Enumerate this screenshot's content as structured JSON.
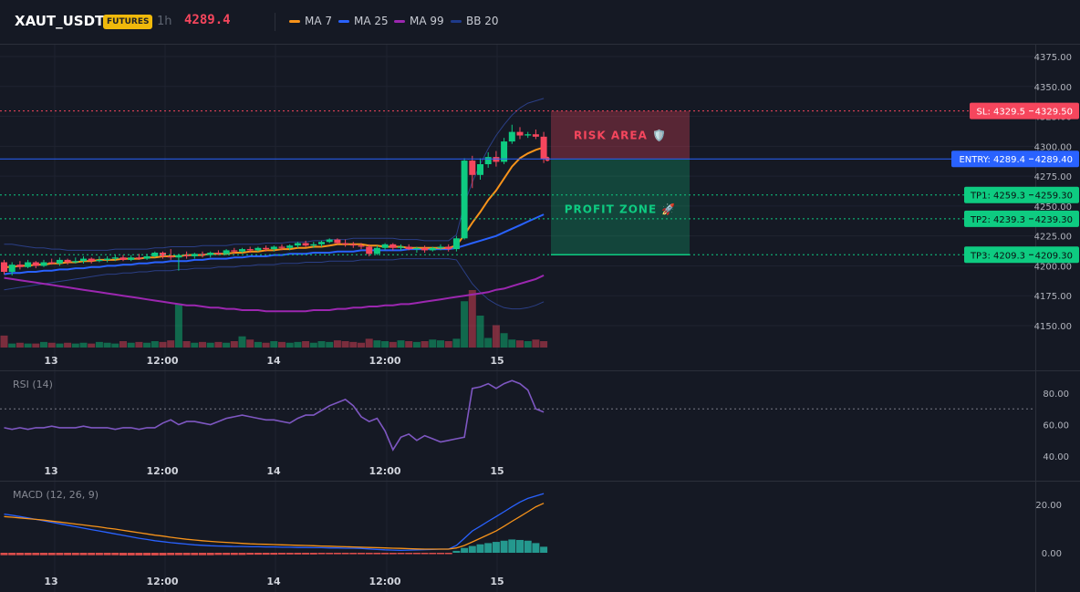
{
  "header": {
    "symbol": "XAUT_USDT",
    "badge": "FUTURES",
    "timeframe": "1h",
    "price": "4289.4",
    "legend": [
      {
        "label": "MA 7",
        "color": "#f7931a"
      },
      {
        "label": "MA 25",
        "color": "#2962ff"
      },
      {
        "label": "MA 99",
        "color": "#9c27b0"
      },
      {
        "label": "BB 20",
        "color": "#1e3a8a"
      }
    ]
  },
  "levels": {
    "sl": {
      "tag": "SL: 4329.5",
      "axis": "4329.50",
      "value": 4329.5,
      "color": "#f6465d"
    },
    "entry": {
      "tag": "ENTRY: 4289.4",
      "axis": "4289.40",
      "value": 4289.4,
      "color": "#2962ff"
    },
    "tp": [
      {
        "tag": "TP1: 4259.3",
        "axis": "4259.30",
        "value": 4259.3
      },
      {
        "tag": "TP2: 4239.3",
        "axis": "4239.30",
        "value": 4239.3
      },
      {
        "tag": "TP3: 4209.3",
        "axis": "4209.30",
        "value": 4209.3
      }
    ]
  },
  "zones": {
    "risk_label": "RISK AREA 🛡️",
    "profit_label": "PROFIT ZONE 🚀"
  },
  "time_ticks": [
    "13",
    "12:00",
    "14",
    "12:00",
    "15"
  ],
  "chart_data": [
    {
      "type": "candlestick",
      "ylim": [
        4130,
        4385
      ],
      "y_ticks": [
        4375,
        4350,
        4325,
        4300,
        4275,
        4250,
        4225,
        4200,
        4175,
        4150
      ],
      "y_tick_labels": [
        "4375.00",
        "4350.00",
        "4325.00",
        "4300.00",
        "4275.00",
        "4250.00",
        "4225.00",
        "4200.00",
        "4175.00",
        "4150.00"
      ],
      "candles": [
        [
          4203,
          4205,
          4193,
          4195
        ],
        [
          4195,
          4203,
          4192,
          4201
        ],
        [
          4201,
          4204,
          4197,
          4199
        ],
        [
          4199,
          4205,
          4198,
          4203
        ],
        [
          4203,
          4204,
          4198,
          4200
        ],
        [
          4200,
          4205,
          4199,
          4203
        ],
        [
          4203,
          4206,
          4201,
          4202
        ],
        [
          4202,
          4207,
          4200,
          4205
        ],
        [
          4205,
          4206,
          4201,
          4203
        ],
        [
          4203,
          4207,
          4202,
          4204
        ],
        [
          4204,
          4208,
          4202,
          4206
        ],
        [
          4206,
          4207,
          4202,
          4204
        ],
        [
          4204,
          4208,
          4203,
          4205
        ],
        [
          4205,
          4208,
          4203,
          4206
        ],
        [
          4206,
          4209,
          4204,
          4207
        ],
        [
          4207,
          4209,
          4204,
          4205
        ],
        [
          4205,
          4209,
          4204,
          4207
        ],
        [
          4207,
          4210,
          4205,
          4206
        ],
        [
          4206,
          4210,
          4205,
          4208
        ],
        [
          4208,
          4212,
          4207,
          4211
        ],
        [
          4211,
          4212,
          4206,
          4208
        ],
        [
          4208,
          4214,
          4205,
          4207
        ],
        [
          4207,
          4210,
          4196,
          4209
        ],
        [
          4209,
          4212,
          4206,
          4208
        ],
        [
          4208,
          4211,
          4206,
          4210
        ],
        [
          4210,
          4212,
          4207,
          4209
        ],
        [
          4209,
          4212,
          4207,
          4211
        ],
        [
          4211,
          4213,
          4209,
          4210
        ],
        [
          4210,
          4214,
          4209,
          4213
        ],
        [
          4213,
          4215,
          4210,
          4212
        ],
        [
          4212,
          4215,
          4211,
          4214
        ],
        [
          4214,
          4216,
          4211,
          4213
        ],
        [
          4213,
          4216,
          4212,
          4215
        ],
        [
          4215,
          4217,
          4212,
          4214
        ],
        [
          4214,
          4217,
          4212,
          4216
        ],
        [
          4216,
          4218,
          4213,
          4215
        ],
        [
          4215,
          4218,
          4213,
          4217
        ],
        [
          4217,
          4220,
          4215,
          4219
        ],
        [
          4219,
          4221,
          4216,
          4217
        ],
        [
          4217,
          4220,
          4215,
          4218
        ],
        [
          4218,
          4221,
          4216,
          4220
        ],
        [
          4220,
          4223,
          4219,
          4222
        ],
        [
          4222,
          4223,
          4218,
          4219
        ],
        [
          4219,
          4222,
          4216,
          4218
        ],
        [
          4218,
          4220,
          4215,
          4217
        ],
        [
          4217,
          4219,
          4214,
          4216
        ],
        [
          4216,
          4218,
          4208,
          4210
        ],
        [
          4210,
          4217,
          4209,
          4215
        ],
        [
          4215,
          4219,
          4213,
          4218
        ],
        [
          4218,
          4219,
          4213,
          4215
        ],
        [
          4215,
          4218,
          4213,
          4216
        ],
        [
          4216,
          4218,
          4213,
          4214
        ],
        [
          4214,
          4216,
          4211,
          4215
        ],
        [
          4215,
          4217,
          4211,
          4213
        ],
        [
          4213,
          4216,
          4212,
          4215
        ],
        [
          4215,
          4218,
          4213,
          4216
        ],
        [
          4216,
          4218,
          4212,
          4214
        ],
        [
          4214,
          4225,
          4212,
          4223
        ],
        [
          4223,
          4290,
          4222,
          4288
        ],
        [
          4288,
          4292,
          4265,
          4276
        ],
        [
          4276,
          4290,
          4272,
          4285
        ],
        [
          4285,
          4295,
          4282,
          4291
        ],
        [
          4291,
          4296,
          4283,
          4287
        ],
        [
          4287,
          4307,
          4285,
          4304
        ],
        [
          4304,
          4318,
          4302,
          4312
        ],
        [
          4312,
          4316,
          4306,
          4309
        ],
        [
          4309,
          4312,
          4307,
          4310
        ],
        [
          4310,
          4314,
          4306,
          4308
        ],
        [
          4308,
          4312,
          4286,
          4289.4
        ]
      ],
      "ma7": [
        4199,
        4199,
        4200,
        4200,
        4201,
        4201,
        4202,
        4202,
        4203,
        4203,
        4204,
        4204,
        4205,
        4205,
        4205,
        4206,
        4206,
        4206,
        4207,
        4207,
        4208,
        4208,
        4208,
        4209,
        4209,
        4209,
        4210,
        4210,
        4210,
        4211,
        4211,
        4212,
        4212,
        4213,
        4213,
        4214,
        4214,
        4215,
        4215,
        4216,
        4216,
        4217,
        4218,
        4218,
        4218,
        4218,
        4217,
        4217,
        4216,
        4216,
        4216,
        4215,
        4215,
        4215,
        4215,
        4215,
        4215,
        4217,
        4226,
        4236,
        4245,
        4255,
        4263,
        4273,
        4283,
        4290,
        4294,
        4297,
        4299
      ],
      "ma25": [
        4193,
        4194,
        4194,
        4195,
        4195,
        4196,
        4196,
        4197,
        4197,
        4198,
        4198,
        4199,
        4199,
        4200,
        4200,
        4201,
        4201,
        4202,
        4202,
        4203,
        4203,
        4204,
        4204,
        4204,
        4205,
        4205,
        4206,
        4206,
        4206,
        4207,
        4207,
        4208,
        4208,
        4208,
        4209,
        4209,
        4210,
        4210,
        4210,
        4211,
        4211,
        4211,
        4212,
        4212,
        4212,
        4213,
        4213,
        4213,
        4213,
        4213,
        4213,
        4214,
        4214,
        4214,
        4214,
        4214,
        4214,
        4215,
        4217,
        4219,
        4221,
        4223,
        4225,
        4228,
        4231,
        4234,
        4237,
        4240,
        4243
      ],
      "ma99": [
        4190,
        4189,
        4188,
        4187,
        4186,
        4185,
        4184,
        4183,
        4182,
        4181,
        4180,
        4179,
        4178,
        4177,
        4176,
        4175,
        4174,
        4173,
        4172,
        4171,
        4170,
        4169,
        4168,
        4167,
        4167,
        4166,
        4165,
        4165,
        4164,
        4164,
        4163,
        4163,
        4163,
        4162,
        4162,
        4162,
        4162,
        4162,
        4162,
        4163,
        4163,
        4163,
        4164,
        4164,
        4165,
        4165,
        4166,
        4166,
        4167,
        4167,
        4168,
        4168,
        4169,
        4170,
        4171,
        4172,
        4173,
        4174,
        4175,
        4176,
        4177,
        4178,
        4180,
        4181,
        4183,
        4185,
        4187,
        4189,
        4192
      ],
      "bb_upper": [
        4218,
        4218,
        4217,
        4216,
        4215,
        4215,
        4214,
        4214,
        4213,
        4213,
        4213,
        4213,
        4213,
        4213,
        4214,
        4214,
        4214,
        4214,
        4214,
        4215,
        4215,
        4216,
        4216,
        4216,
        4216,
        4217,
        4217,
        4217,
        4217,
        4218,
        4218,
        4218,
        4218,
        4219,
        4219,
        4219,
        4220,
        4220,
        4220,
        4221,
        4221,
        4222,
        4222,
        4222,
        4223,
        4223,
        4223,
        4223,
        4223,
        4223,
        4222,
        4222,
        4222,
        4221,
        4221,
        4221,
        4221,
        4226,
        4252,
        4270,
        4285,
        4298,
        4309,
        4318,
        4326,
        4332,
        4336,
        4338,
        4340
      ],
      "bb_lower": [
        4180,
        4181,
        4182,
        4183,
        4184,
        4185,
        4186,
        4187,
        4188,
        4189,
        4190,
        4191,
        4192,
        4193,
        4193,
        4194,
        4194,
        4195,
        4195,
        4196,
        4196,
        4196,
        4197,
        4197,
        4198,
        4198,
        4198,
        4199,
        4199,
        4199,
        4200,
        4200,
        4201,
        4201,
        4201,
        4202,
        4202,
        4202,
        4203,
        4203,
        4203,
        4204,
        4204,
        4204,
        4204,
        4205,
        4205,
        4205,
        4205,
        4205,
        4206,
        4206,
        4206,
        4206,
        4206,
        4206,
        4206,
        4205,
        4195,
        4185,
        4178,
        4172,
        4168,
        4165,
        4164,
        4164,
        4165,
        4167,
        4170
      ],
      "volume": [
        15,
        5,
        6,
        5,
        5,
        7,
        6,
        5,
        6,
        5,
        6,
        5,
        7,
        6,
        5,
        8,
        6,
        7,
        6,
        8,
        7,
        9,
        55,
        8,
        6,
        7,
        6,
        7,
        6,
        8,
        14,
        10,
        7,
        6,
        8,
        7,
        6,
        7,
        8,
        6,
        8,
        7,
        9,
        8,
        7,
        6,
        11,
        9,
        8,
        7,
        9,
        8,
        7,
        8,
        10,
        9,
        8,
        11,
        58,
        72,
        40,
        12,
        28,
        18,
        10,
        9,
        8,
        10,
        8
      ]
    },
    {
      "type": "line",
      "title": "RSI (14)",
      "ylim": [
        38,
        92
      ],
      "y_ticks": [
        80,
        60,
        40
      ],
      "y_tick_labels": [
        "80.00",
        "60.00",
        "40.00"
      ],
      "reference": 70,
      "values": [
        58,
        57,
        58,
        57,
        58,
        58,
        59,
        58,
        58,
        58,
        59,
        58,
        58,
        58,
        57,
        58,
        58,
        57,
        58,
        58,
        61,
        63,
        60,
        62,
        62,
        61,
        60,
        62,
        64,
        65,
        66,
        65,
        64,
        63,
        63,
        62,
        61,
        64,
        66,
        66,
        69,
        72,
        74,
        76,
        72,
        65,
        62,
        64,
        56,
        44,
        52,
        54,
        50,
        53,
        51,
        49,
        50,
        51,
        52,
        83,
        84,
        86,
        83,
        86,
        88,
        86,
        82,
        70,
        68
      ]
    },
    {
      "type": "line",
      "title": "MACD (12, 26, 9)",
      "ylim": [
        -3,
        24
      ],
      "y_ticks": [
        20,
        0
      ],
      "y_tick_labels": [
        "20.00",
        "0.00"
      ],
      "macd": [
        16,
        15.5,
        15,
        14.4,
        13.8,
        13.2,
        12.6,
        12,
        11.4,
        10.8,
        10.2,
        9.6,
        9,
        8.4,
        7.8,
        7.2,
        6.6,
        6,
        5.5,
        5,
        4.6,
        4.2,
        3.9,
        3.6,
        3.3,
        3.1,
        2.9,
        2.8,
        2.7,
        2.6,
        2.6,
        2.5,
        2.5,
        2.4,
        2.4,
        2.3,
        2.3,
        2.2,
        2.2,
        2.1,
        2.1,
        2,
        2,
        1.9,
        1.9,
        1.8,
        1.6,
        1.4,
        1.2,
        1.1,
        1,
        1.1,
        1.2,
        1.3,
        1.4,
        1.5,
        1.5,
        3,
        6,
        9,
        11,
        13,
        15,
        17,
        19,
        21,
        22.5,
        23.5,
        24.5
      ],
      "signal": [
        15,
        14.7,
        14.4,
        14.1,
        13.8,
        13.5,
        13.1,
        12.7,
        12.3,
        11.9,
        11.5,
        11.1,
        10.7,
        10.2,
        9.8,
        9.3,
        8.8,
        8.3,
        7.8,
        7.3,
        6.9,
        6.4,
        6,
        5.6,
        5.3,
        5,
        4.7,
        4.5,
        4.3,
        4.1,
        3.9,
        3.7,
        3.6,
        3.5,
        3.4,
        3.3,
        3.2,
        3.1,
        3,
        2.9,
        2.8,
        2.7,
        2.6,
        2.5,
        2.4,
        2.3,
        2.2,
        2.1,
        2,
        1.9,
        1.8,
        1.7,
        1.6,
        1.5,
        1.5,
        1.5,
        1.5,
        2,
        3,
        4.5,
        6,
        7.5,
        9,
        11,
        13,
        15,
        17,
        19,
        20.5
      ],
      "histogram": [
        -1,
        -1,
        -1,
        -1,
        -1,
        -1,
        -1,
        -1,
        -1,
        -1,
        -1,
        -1,
        -1,
        -1,
        -1,
        -1.1,
        -1.1,
        -1.1,
        -1.1,
        -1.1,
        -1.1,
        -1,
        -1,
        -1,
        -1,
        -1,
        -1,
        -0.9,
        -0.9,
        -0.9,
        -0.9,
        -0.8,
        -0.8,
        -0.8,
        -0.8,
        -0.7,
        -0.7,
        -0.7,
        -0.7,
        -0.7,
        -0.6,
        -0.6,
        -0.6,
        -0.6,
        -0.6,
        -0.6,
        -0.6,
        -0.6,
        -0.6,
        -0.6,
        -0.5,
        -0.5,
        -0.5,
        -0.4,
        -0.3,
        -0.2,
        -0.1,
        0.8,
        2,
        2.8,
        3.5,
        4,
        4.5,
        5,
        5.5,
        5.3,
        5,
        4,
        2.5
      ]
    }
  ]
}
